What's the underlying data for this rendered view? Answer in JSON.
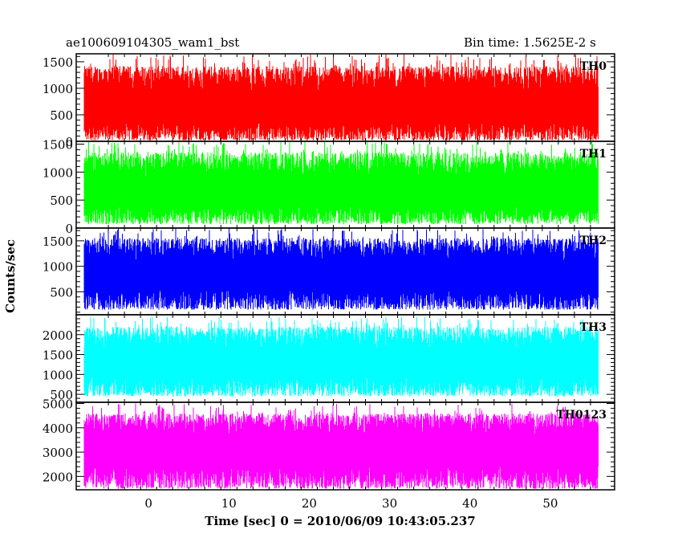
{
  "header": {
    "title": "ae100609104305_wam1_bst",
    "bin_time": "Bin time: 1.5625E-2 s"
  },
  "chart_data": {
    "type": "line",
    "title": "ae100609104305_wam1_bst",
    "subtitle": "Bin time: 1.5625E-2 s",
    "xlabel": "Time [sec] 0 = 2010/06/09 10:43:05.237",
    "ylabel": "Counts/sec",
    "xlim": [
      -9,
      58
    ],
    "x_ticks": [
      0,
      10,
      20,
      30,
      40,
      50
    ],
    "x_data_range": [
      -8,
      56
    ],
    "grid": false,
    "panels": [
      {
        "name": "TH0",
        "color": "#ff0000",
        "ylim": [
          0,
          1650
        ],
        "y_ticks": [
          0,
          500,
          1000,
          1500
        ],
        "signal": {
          "base": 20,
          "mean": 600,
          "peak": 1650
        }
      },
      {
        "name": "TH1",
        "color": "#00ff00",
        "ylim": [
          0,
          1550
        ],
        "y_ticks": [
          0,
          500,
          1000,
          1500
        ],
        "signal": {
          "base": 70,
          "mean": 650,
          "peak": 1550
        }
      },
      {
        "name": "TH2",
        "color": "#0000ff",
        "ylim": [
          50,
          1750
        ],
        "y_ticks": [
          500,
          1000,
          1500
        ],
        "signal": {
          "base": 150,
          "mean": 850,
          "peak": 1750
        }
      },
      {
        "name": "TH3",
        "color": "#00ffff",
        "ylim": [
          300,
          2500
        ],
        "y_ticks": [
          500,
          1000,
          1500,
          2000
        ],
        "signal": {
          "base": 450,
          "mean": 1300,
          "peak": 2450
        }
      },
      {
        "name": "TH0123",
        "color": "#ff00ff",
        "ylim": [
          1450,
          5050
        ],
        "y_ticks": [
          2000,
          3000,
          4000,
          5000
        ],
        "signal": {
          "base": 1500,
          "mean": 3150,
          "peak": 5000
        }
      }
    ]
  }
}
